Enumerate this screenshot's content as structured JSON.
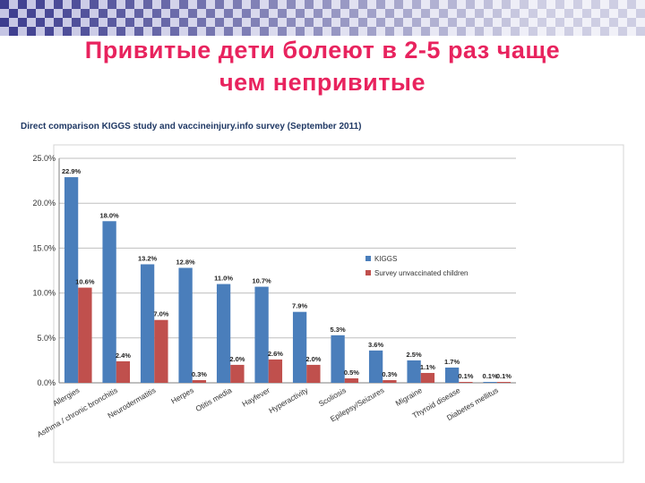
{
  "slide": {
    "title_line1": "Привитые дети болеют в 2-5 раз чаще",
    "title_line2": "чем непривитые"
  },
  "colors": {
    "title": "#e8235e",
    "kiggs": "#4a7ebb",
    "unvaccinated": "#c0504d",
    "chart_title": "#1f3864",
    "checker_dark": "#3d3d8f",
    "checker_light": "#b7b7dd"
  },
  "chart_data": {
    "type": "bar",
    "title": "Direct comparison KIGGS study and vaccineinjury.info survey (September 2011)",
    "categories": [
      "Allergies",
      "Asthma / chronic bronchitis",
      "Neurodermatitis",
      "Herpes",
      "Otitis media",
      "Hayfever",
      "Hyperactivity",
      "Scoliosis",
      "Epilepsy/Seizures",
      "Migraine",
      "Thyroid disease",
      "Diabetes mellitus"
    ],
    "series": [
      {
        "name": "KIGGS",
        "values": [
          22.9,
          18.0,
          13.2,
          12.8,
          11.0,
          10.7,
          7.9,
          5.3,
          3.6,
          2.5,
          1.7,
          0.1
        ]
      },
      {
        "name": "Survey unvaccinated children",
        "values": [
          10.6,
          2.4,
          7.0,
          0.3,
          2.0,
          2.6,
          2.0,
          0.5,
          0.3,
          1.1,
          0.1,
          0.1
        ]
      }
    ],
    "kiggs_labels": [
      "22.9%",
      "18.0%",
      "13.2%",
      "12.8%",
      "11.0%",
      "10.7%",
      "7.9%",
      "5.3%",
      "3.6%",
      "2.5%",
      "1.7%",
      "0.1%"
    ],
    "survey_labels": [
      "10.6%",
      "2.4%",
      "7.0%",
      "0.3%",
      "2.0%",
      "2.6%",
      "2.0%",
      "0.5%",
      "0.3%",
      "1.1%",
      "0.1%",
      "0.1%"
    ],
    "y_ticks": [
      "0.0%",
      "5.0%",
      "10.0%",
      "15.0%",
      "20.0%",
      "25.0%"
    ],
    "ylim": [
      0,
      25
    ],
    "grid": true,
    "legend": "right"
  }
}
